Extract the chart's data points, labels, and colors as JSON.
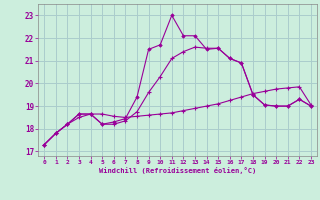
{
  "xlabel": "Windchill (Refroidissement éolien,°C)",
  "background_color": "#cceedd",
  "grid_color": "#aacccc",
  "line_color": "#990099",
  "xlim": [
    -0.5,
    23.5
  ],
  "ylim": [
    16.8,
    23.5
  ],
  "yticks": [
    17,
    18,
    19,
    20,
    21,
    22,
    23
  ],
  "xticks": [
    0,
    1,
    2,
    3,
    4,
    5,
    6,
    7,
    8,
    9,
    10,
    11,
    12,
    13,
    14,
    15,
    16,
    17,
    18,
    19,
    20,
    21,
    22,
    23
  ],
  "line1_x": [
    0,
    1,
    2,
    3,
    4,
    5,
    6,
    7,
    8,
    9,
    10,
    11,
    12,
    13,
    14,
    15,
    16,
    17,
    18,
    19,
    20,
    21,
    22,
    23
  ],
  "line1_y": [
    17.3,
    17.8,
    18.2,
    18.65,
    18.65,
    18.2,
    18.3,
    18.45,
    19.4,
    21.5,
    21.7,
    23.0,
    22.1,
    22.1,
    21.5,
    21.55,
    21.1,
    20.9,
    19.5,
    19.05,
    19.0,
    19.0,
    19.3,
    19.0
  ],
  "line2_x": [
    0,
    1,
    2,
    3,
    4,
    5,
    6,
    7,
    8,
    9,
    10,
    11,
    12,
    13,
    14,
    15,
    16,
    17,
    18,
    19,
    20,
    21,
    22,
    23
  ],
  "line2_y": [
    17.3,
    17.8,
    18.2,
    18.65,
    18.65,
    18.65,
    18.55,
    18.5,
    18.55,
    18.6,
    18.65,
    18.7,
    18.8,
    18.9,
    19.0,
    19.1,
    19.25,
    19.4,
    19.55,
    19.65,
    19.75,
    19.8,
    19.85,
    19.05
  ],
  "line3_x": [
    0,
    1,
    2,
    3,
    4,
    5,
    6,
    7,
    8,
    9,
    10,
    11,
    12,
    13,
    14,
    15,
    16,
    17,
    18,
    19,
    20,
    21,
    22,
    23
  ],
  "line3_y": [
    17.3,
    17.8,
    18.2,
    18.5,
    18.65,
    18.2,
    18.2,
    18.35,
    18.75,
    19.6,
    20.3,
    21.1,
    21.4,
    21.6,
    21.55,
    21.55,
    21.1,
    20.9,
    19.5,
    19.05,
    19.0,
    19.0,
    19.3,
    19.0
  ]
}
